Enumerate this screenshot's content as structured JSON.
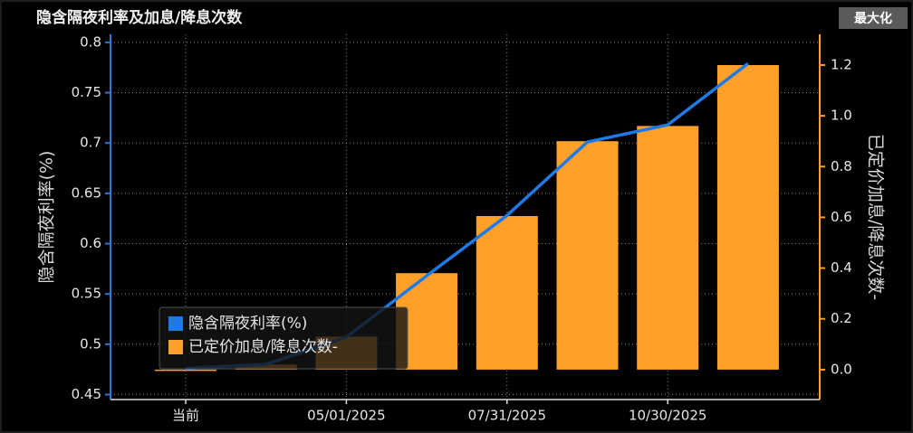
{
  "maximize": "最大化",
  "chart_data": {
    "type": "combo",
    "title": "隐含隔夜利率及加息/降息次数",
    "ylabel": "隐含隔夜利率(%)",
    "y2label": "已定价加息/降息次数-",
    "categories": [
      "当前",
      null,
      "05/01/2025",
      null,
      "07/31/2025",
      null,
      "10/30/2025",
      null
    ],
    "series": [
      {
        "name": "已定价加息/降息次数-",
        "type": "bar",
        "axis": "y2",
        "color": "#ffa028",
        "values": [
          0,
          0.02,
          0.13,
          0.38,
          0.605,
          0.9,
          0.96,
          1.2
        ]
      },
      {
        "name": "隐含隔夜利率(%)",
        "type": "line",
        "color": "#1e7ae6",
        "values": [
          0.476,
          0.48,
          0.507,
          0.568,
          0.628,
          0.701,
          0.718,
          0.779
        ]
      }
    ],
    "ylim": [
      0.445,
      0.808
    ],
    "yticks": [
      0.45,
      0.5,
      0.55,
      0.6,
      0.65,
      0.7,
      0.75,
      0.8
    ],
    "y2lim": [
      -0.118,
      1.321
    ],
    "y2ticks": [
      {
        "value": 0,
        "label": "0.0"
      },
      0.2,
      0.4,
      0.6,
      0.8,
      {
        "value": 1,
        "label": "1.0"
      },
      1.2
    ],
    "grid": true
  }
}
